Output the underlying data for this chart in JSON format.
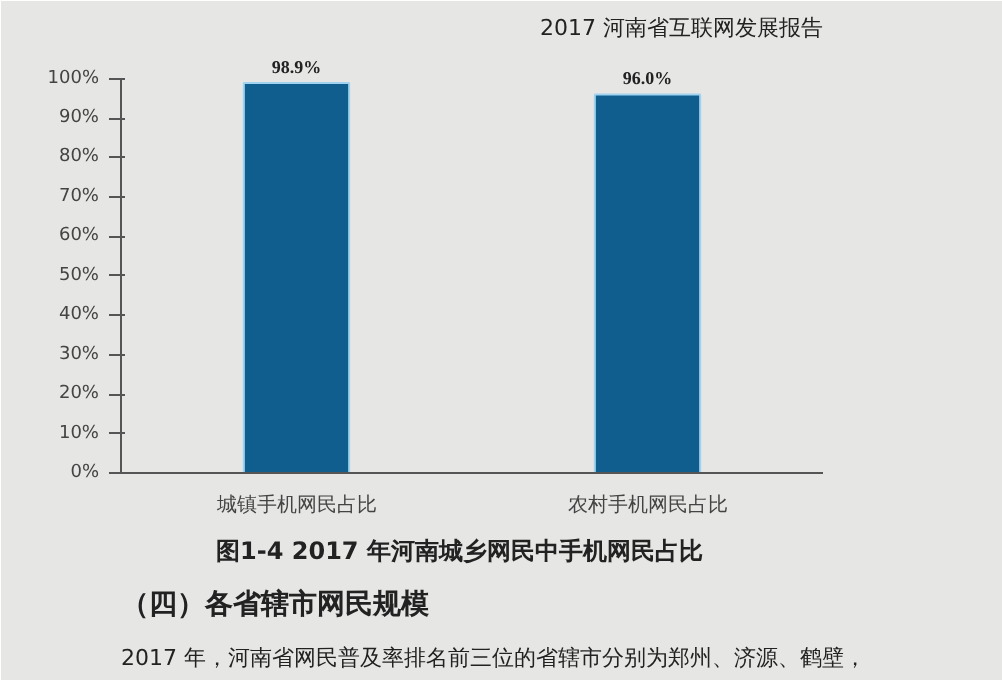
{
  "chart_data": {
    "type": "bar",
    "title": "图1-4    2017 年河南城乡网民中手机网民占比",
    "categories": [
      "城镇手机网民占比",
      "农村手机网民占比"
    ],
    "values": [
      98.9,
      96.0
    ],
    "color": "#0f5e8e",
    "data_labels": true,
    "value_labels": [
      "98.9%",
      "96.0%"
    ],
    "ylim": [
      0,
      100
    ],
    "yticks": [
      {
        "value": 0,
        "label": "0%"
      },
      {
        "value": 10,
        "label": "10%"
      },
      {
        "value": 20,
        "label": "20%"
      },
      {
        "value": 30,
        "label": "30%"
      },
      {
        "value": 40,
        "label": "40%"
      },
      {
        "value": 50,
        "label": "50%"
      },
      {
        "value": 60,
        "label": "60%"
      },
      {
        "value": 70,
        "label": "70%"
      },
      {
        "value": 80,
        "label": "80%"
      },
      {
        "value": 90,
        "label": "90%"
      },
      {
        "value": 100,
        "label": "100%"
      }
    ],
    "annotations": [
      "2017 河南省互联网发展报告",
      "（四）各省辖市网民规模",
      "2017 年，河南省网民普及率排名前三位的省辖市分别为郑州、济源、鹤壁，"
    ]
  }
}
